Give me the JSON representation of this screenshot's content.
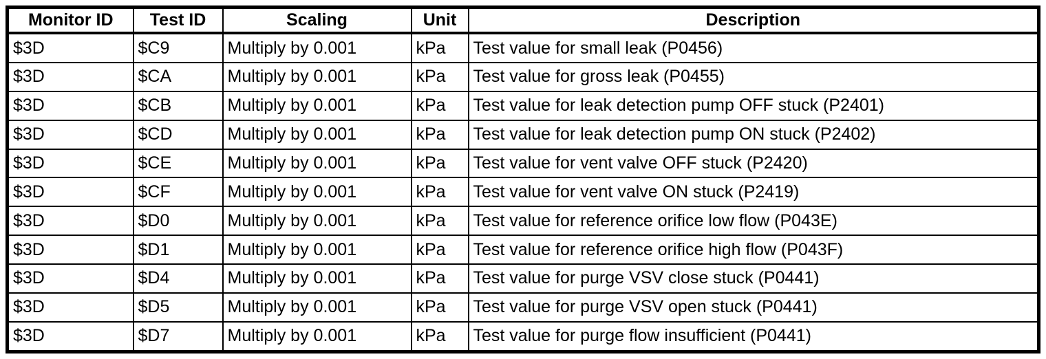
{
  "colors": {
    "border": "#000000",
    "background": "#ffffff",
    "text": "#000000"
  },
  "table": {
    "columns": [
      {
        "label": "Monitor ID"
      },
      {
        "label": "Test ID"
      },
      {
        "label": "Scaling"
      },
      {
        "label": "Unit"
      },
      {
        "label": "Description"
      }
    ],
    "rows": [
      {
        "monitor_id": "$3D",
        "test_id": "$C9",
        "scaling": "Multiply by 0.001",
        "unit": "kPa",
        "description": "Test value for small leak (P0456)"
      },
      {
        "monitor_id": "$3D",
        "test_id": "$CA",
        "scaling": "Multiply by 0.001",
        "unit": "kPa",
        "description": "Test value for gross leak (P0455)"
      },
      {
        "monitor_id": "$3D",
        "test_id": "$CB",
        "scaling": "Multiply by 0.001",
        "unit": "kPa",
        "description": "Test value for leak detection pump OFF stuck (P2401)"
      },
      {
        "monitor_id": "$3D",
        "test_id": "$CD",
        "scaling": "Multiply by 0.001",
        "unit": "kPa",
        "description": "Test value for leak detection pump ON stuck (P2402)"
      },
      {
        "monitor_id": "$3D",
        "test_id": "$CE",
        "scaling": "Multiply by 0.001",
        "unit": "kPa",
        "description": "Test value for vent valve OFF stuck (P2420)"
      },
      {
        "monitor_id": "$3D",
        "test_id": "$CF",
        "scaling": "Multiply by 0.001",
        "unit": "kPa",
        "description": "Test value for vent valve ON stuck (P2419)"
      },
      {
        "monitor_id": "$3D",
        "test_id": "$D0",
        "scaling": "Multiply by 0.001",
        "unit": "kPa",
        "description": "Test value for reference orifice low flow (P043E)"
      },
      {
        "monitor_id": "$3D",
        "test_id": "$D1",
        "scaling": "Multiply by 0.001",
        "unit": "kPa",
        "description": "Test value for reference orifice high flow (P043F)"
      },
      {
        "monitor_id": "$3D",
        "test_id": "$D4",
        "scaling": "Multiply by 0.001",
        "unit": "kPa",
        "description": "Test value for purge VSV close stuck (P0441)"
      },
      {
        "monitor_id": "$3D",
        "test_id": "$D5",
        "scaling": "Multiply by 0.001",
        "unit": "kPa",
        "description": "Test value for purge VSV open stuck (P0441)"
      },
      {
        "monitor_id": "$3D",
        "test_id": "$D7",
        "scaling": "Multiply by 0.001",
        "unit": "kPa",
        "description": "Test value for purge flow insufficient (P0441)"
      }
    ]
  }
}
